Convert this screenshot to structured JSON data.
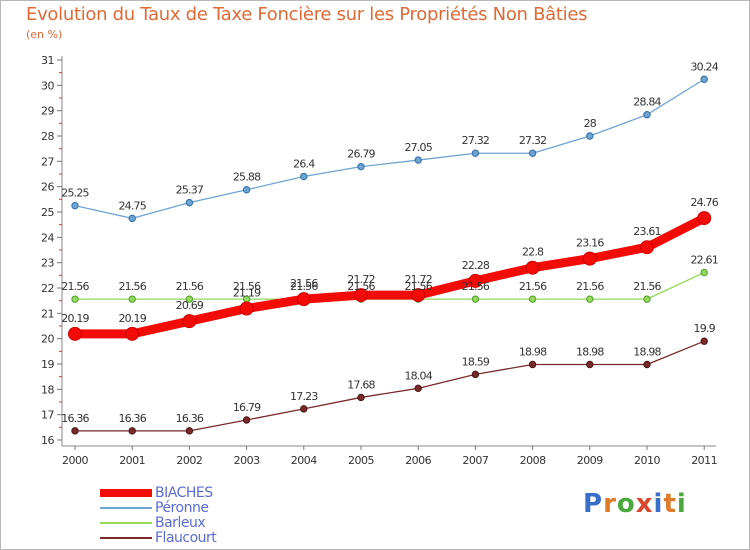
{
  "title": "Evolution du Taux de Taxe Foncière sur les Propriétés Non Bâties",
  "unit_label": "(en %)",
  "logo": {
    "letters": [
      "P",
      "r",
      "o",
      "x",
      "i",
      "t",
      "i"
    ],
    "colors": [
      "#3a6fc9",
      "#e07b2a",
      "#4aa83c",
      "#d7472b",
      "#3a6fc9",
      "#e07b2a",
      "#4aa83c"
    ]
  },
  "chart_data": {
    "type": "line",
    "title": "Evolution du Taux de Taxe Foncière sur les Propriétés Non Bâties",
    "ylabel": "(en %)",
    "xlabel": "",
    "x": [
      "2000",
      "2001",
      "2002",
      "2003",
      "2004",
      "2005",
      "2006",
      "2007",
      "2008",
      "2009",
      "2010",
      "2011"
    ],
    "ylim": [
      16,
      31
    ],
    "yticks": [
      16,
      17,
      18,
      19,
      20,
      21,
      22,
      23,
      24,
      25,
      26,
      27,
      28,
      29,
      30,
      31
    ],
    "grid": false,
    "legend_position": "bottom-left",
    "series": [
      {
        "name": "BIACHES",
        "color": "#f20b07",
        "values": [
          20.19,
          20.19,
          20.69,
          21.19,
          21.56,
          21.72,
          21.72,
          22.28,
          22.8,
          23.16,
          23.61,
          24.76
        ],
        "labels": [
          "20.19",
          "20.19",
          "20.69",
          "21.19",
          "21.56",
          "21.72",
          "21.72",
          "22.28",
          "22.8",
          "23.16",
          "23.61",
          "24.76"
        ]
      },
      {
        "name": "Péronne",
        "color": "#6fa3d2",
        "values": [
          25.25,
          24.75,
          25.37,
          25.88,
          26.4,
          26.79,
          27.05,
          27.32,
          27.32,
          28,
          28.84,
          30.24
        ],
        "labels": [
          "25.25",
          "24.75",
          "25.37",
          "25.88",
          "26.4",
          "26.79",
          "27.05",
          "27.32",
          "27.32",
          "28",
          "28.84",
          "30.24"
        ]
      },
      {
        "name": "Barleux",
        "color": "#93d95e",
        "values": [
          21.56,
          21.56,
          21.56,
          21.56,
          21.56,
          21.56,
          21.56,
          21.56,
          21.56,
          21.56,
          21.56,
          22.61
        ],
        "labels": [
          "21.56",
          "21.56",
          "21.56",
          "21.56",
          "21.56",
          "21.56",
          "21.56",
          "21.56",
          "21.56",
          "21.56",
          "21.56",
          "22.61"
        ]
      },
      {
        "name": "Flaucourt",
        "color": "#7a2a2a",
        "values": [
          16.36,
          16.36,
          16.36,
          16.79,
          17.23,
          17.68,
          18.04,
          18.59,
          18.98,
          18.98,
          18.98,
          19.9
        ],
        "labels": [
          "16.36",
          "16.36",
          "16.36",
          "16.79",
          "17.23",
          "17.68",
          "18.04",
          "18.59",
          "18.98",
          "18.98",
          "18.98",
          "19.9"
        ]
      }
    ]
  }
}
